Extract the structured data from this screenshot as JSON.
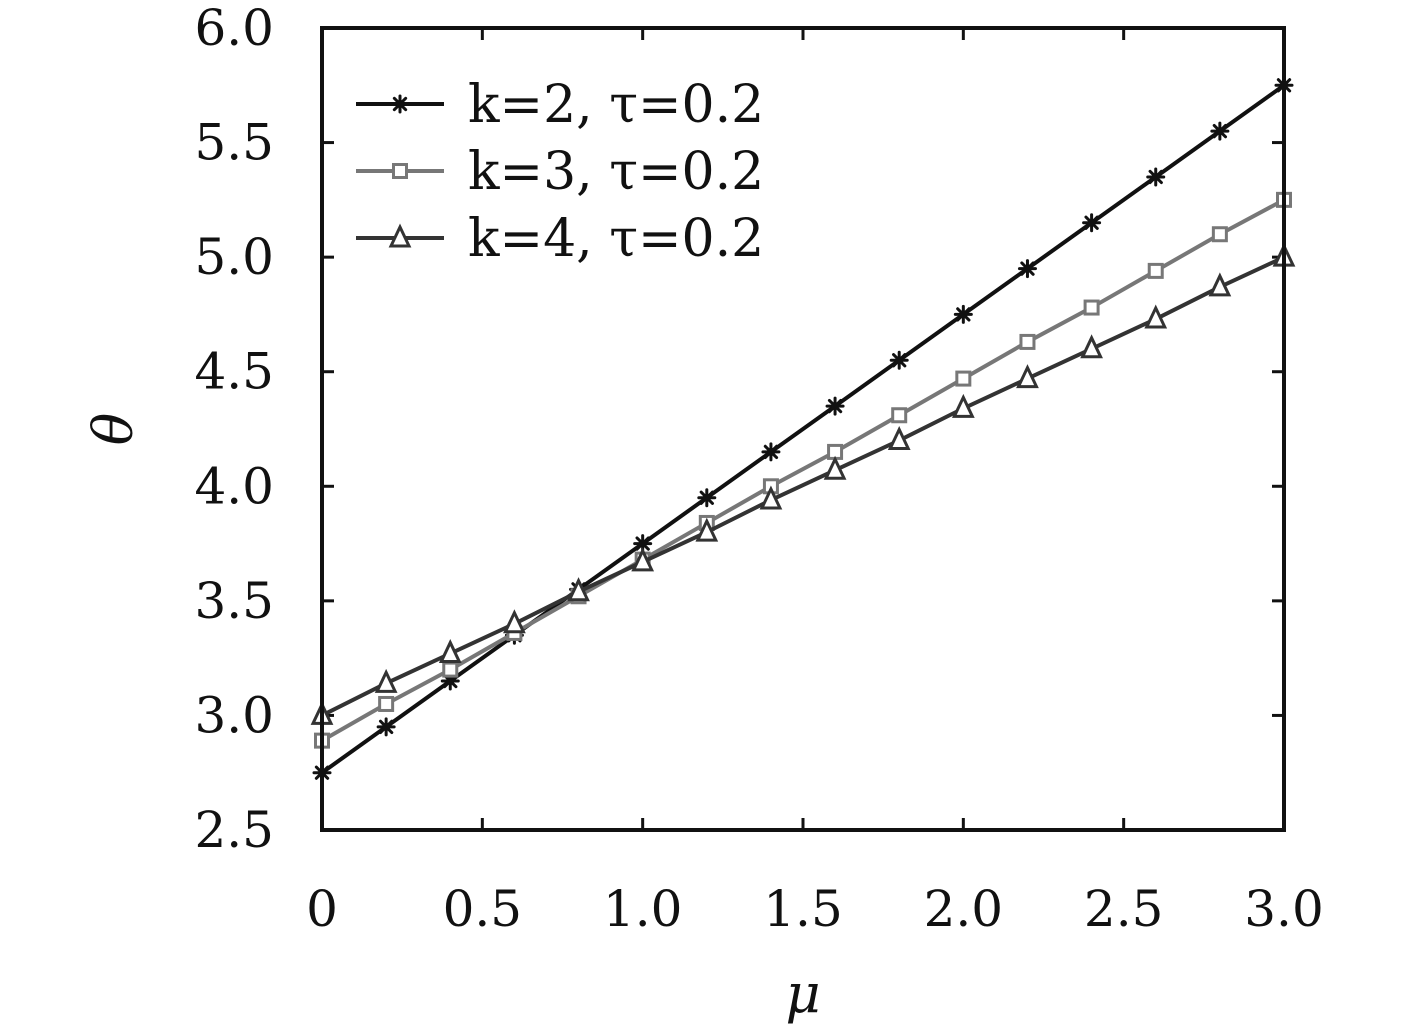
{
  "chart_data": {
    "type": "line",
    "title": "",
    "xlabel": "μ",
    "ylabel": "θ",
    "xlim": [
      0,
      3.0
    ],
    "ylim": [
      2.5,
      6.0
    ],
    "xticks": [
      0,
      0.5,
      1.0,
      1.5,
      2.0,
      2.5,
      3.0
    ],
    "xtick_labels": [
      "0",
      "0.5",
      "1.0",
      "1.5",
      "2.0",
      "2.5",
      "3.0"
    ],
    "yticks": [
      2.5,
      3.0,
      3.5,
      4.0,
      4.5,
      5.0,
      5.5,
      6.0
    ],
    "ytick_labels": [
      "2.5",
      "3.0",
      "3.5",
      "4.0",
      "4.5",
      "5.0",
      "5.5",
      "6.0"
    ],
    "grid": false,
    "legend_position": "top-left",
    "x": [
      0,
      0.2,
      0.4,
      0.6,
      0.8,
      1.0,
      1.2,
      1.4,
      1.6,
      1.8,
      2.0,
      2.2,
      2.4,
      2.6,
      2.8,
      3.0
    ],
    "series": [
      {
        "name": "k=2, τ=0.2",
        "marker": "asterisk",
        "color": "#111111",
        "values": [
          2.75,
          2.95,
          3.15,
          3.35,
          3.55,
          3.75,
          3.95,
          4.15,
          4.35,
          4.55,
          4.75,
          4.95,
          5.15,
          5.35,
          5.55,
          5.75
        ]
      },
      {
        "name": "k=3, τ=0.2",
        "marker": "square",
        "color": "#777777",
        "values": [
          2.89,
          3.05,
          3.2,
          3.36,
          3.52,
          3.68,
          3.84,
          4.0,
          4.15,
          4.31,
          4.47,
          4.63,
          4.78,
          4.94,
          5.1,
          5.25
        ]
      },
      {
        "name": "k=4, τ=0.2",
        "marker": "triangle",
        "color": "#333333",
        "values": [
          3.0,
          3.14,
          3.27,
          3.4,
          3.54,
          3.67,
          3.8,
          3.94,
          4.07,
          4.2,
          4.34,
          4.47,
          4.6,
          4.73,
          4.87,
          5.0
        ]
      }
    ]
  }
}
